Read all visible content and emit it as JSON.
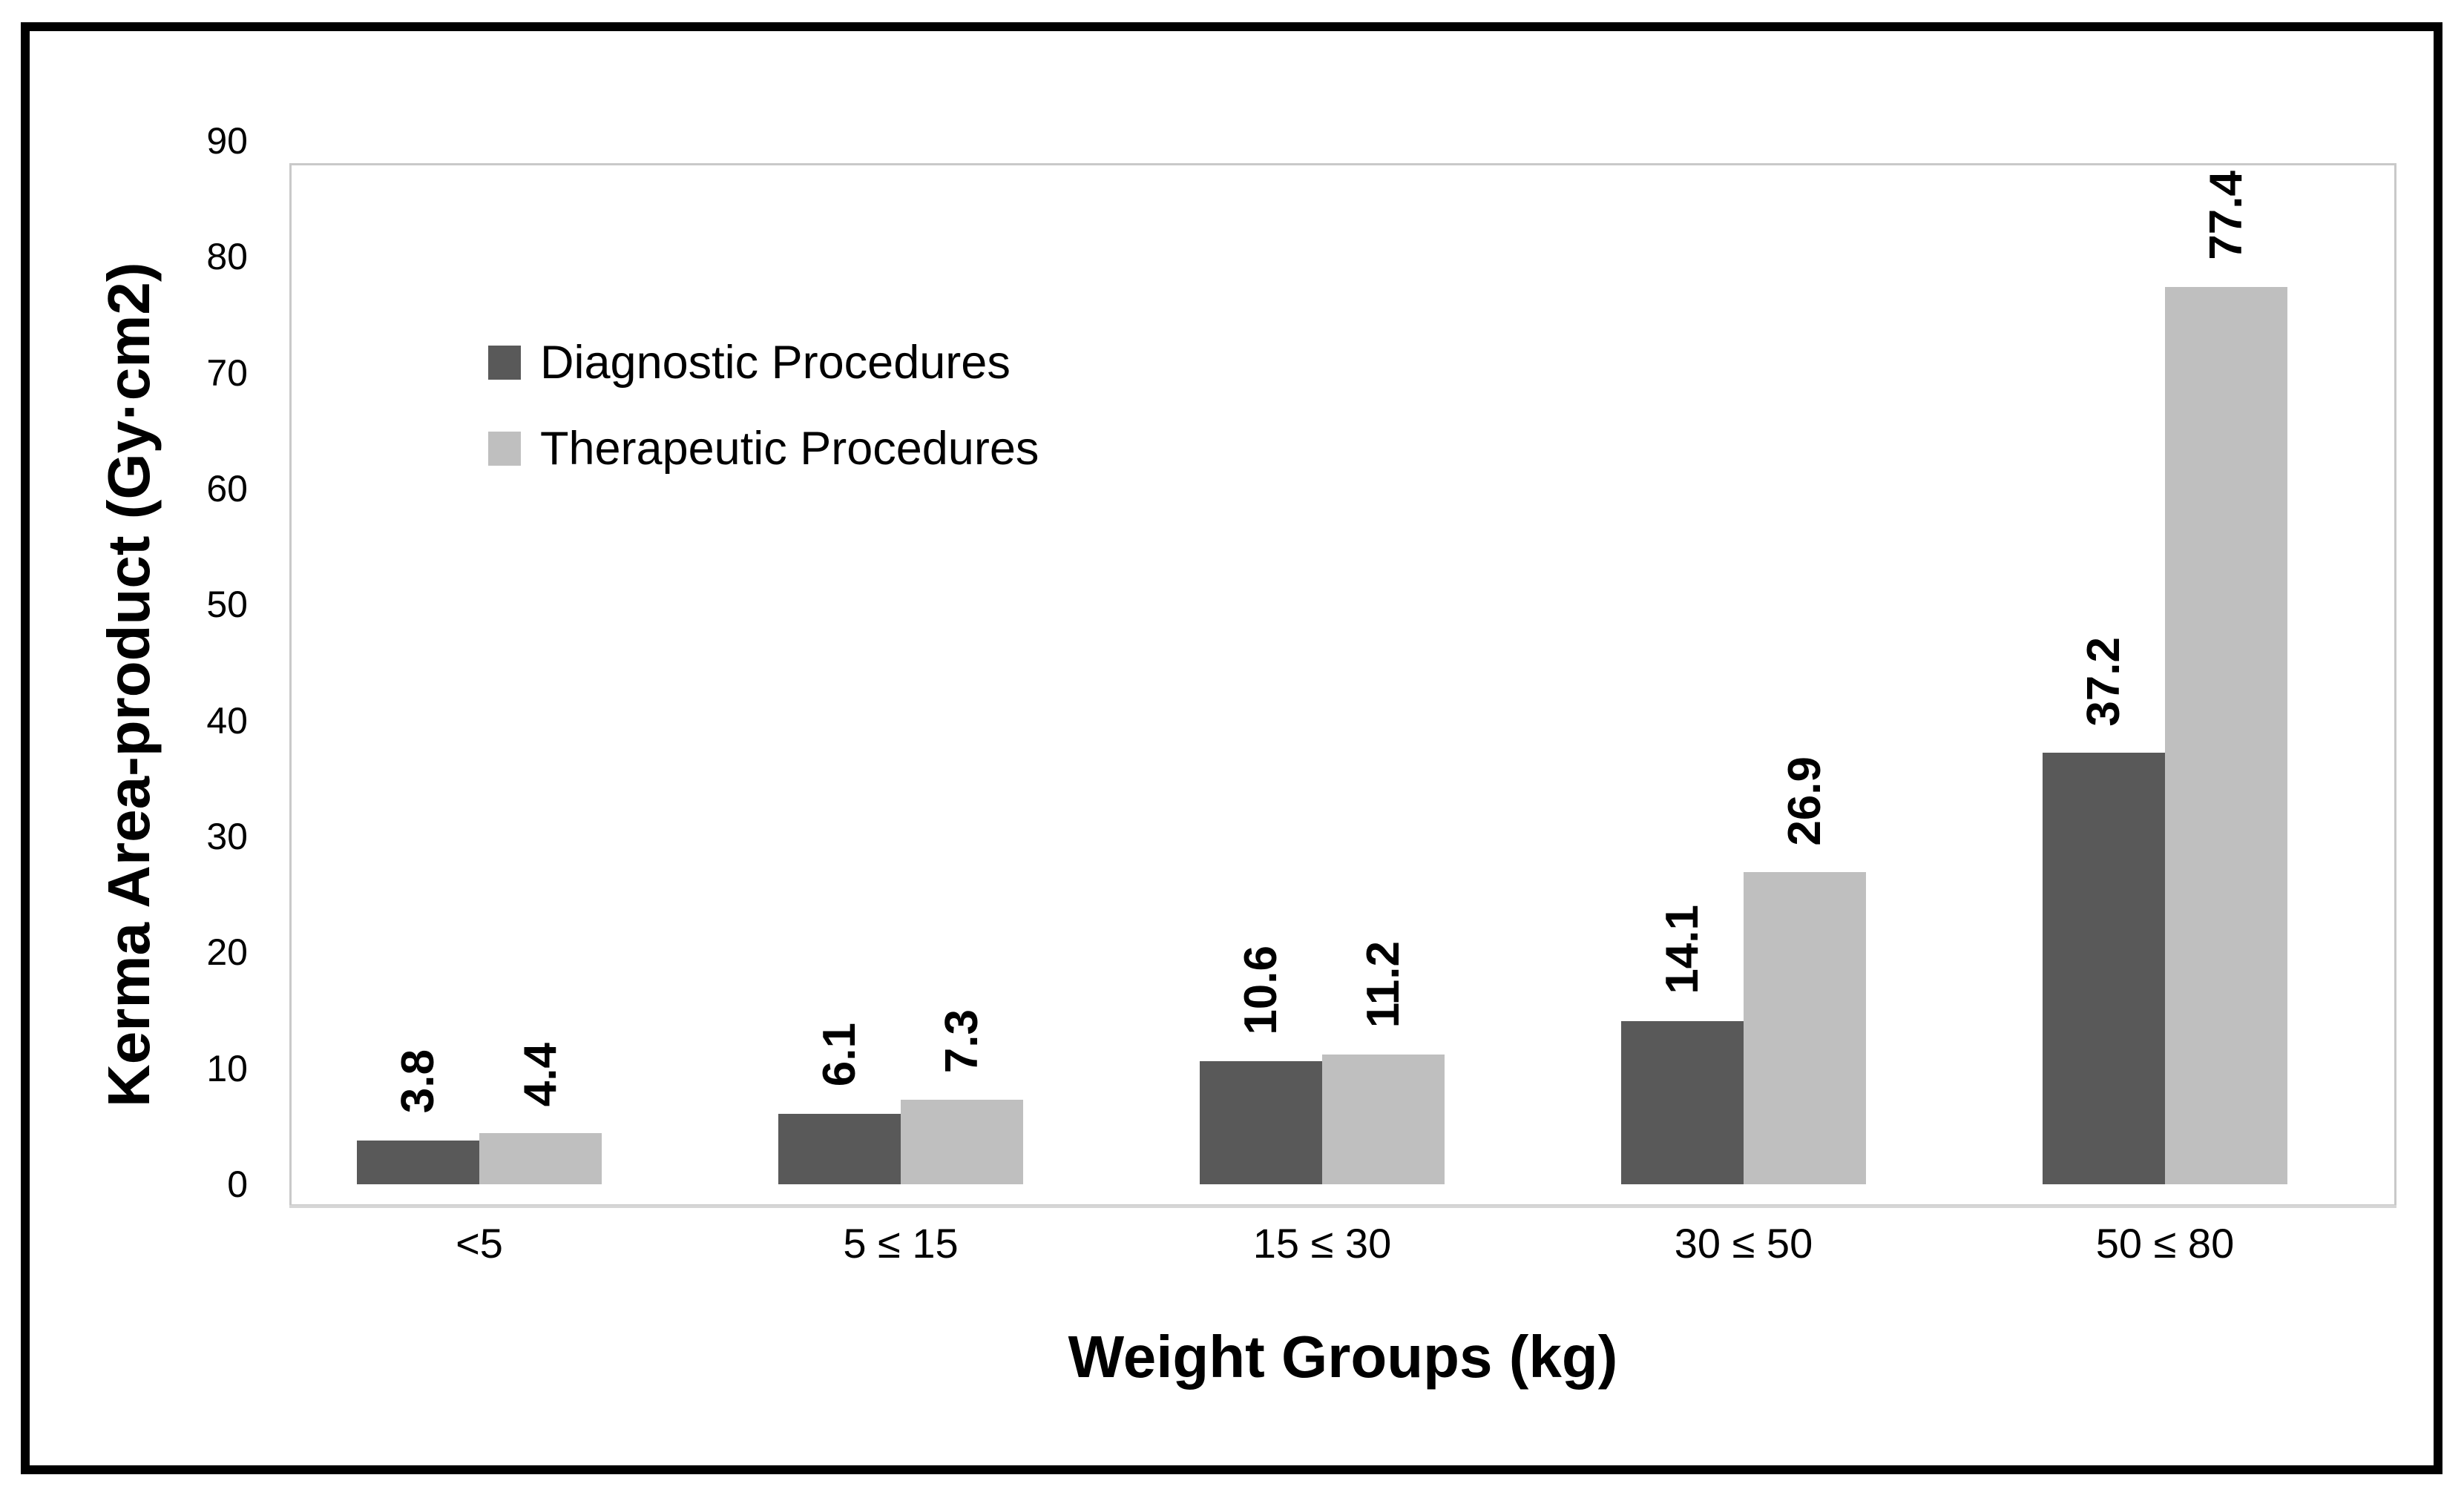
{
  "chart_data": {
    "type": "bar",
    "title": "",
    "xlabel": "Weight Groups (kg)",
    "ylabel": "Kerma Area-product (Gy·cm2)",
    "categories": [
      "<5",
      "5 ≤ 15",
      "15 ≤ 30",
      "30 ≤ 50",
      "50 ≤ 80"
    ],
    "series": [
      {
        "name": "Diagnostic Procedures",
        "color": "#595959",
        "values": [
          3.8,
          6.1,
          10.6,
          14.1,
          37.2
        ]
      },
      {
        "name": "Therapeutic Procedures",
        "color": "#bfbfbf",
        "values": [
          4.4,
          7.3,
          11.2,
          26.9,
          77.4
        ]
      }
    ],
    "data_labels": {
      "Diagnostic Procedures": [
        "3.8",
        "6.1",
        "10.6",
        "14.1",
        "37.2"
      ],
      "Therapeutic Procedures": [
        "4.4",
        "7.3",
        "11.2",
        "26.9",
        "77.4"
      ]
    },
    "ylim": [
      0,
      90
    ],
    "ytick_step": 10,
    "ytick_labels": [
      "0",
      "10",
      "20",
      "30",
      "40",
      "50",
      "60",
      "70",
      "80",
      "90"
    ],
    "grid": false,
    "legend_position": "upper-left-inside",
    "data_label_orientation": "rotated-90",
    "bar_colors": {
      "diagnostic": "#595959",
      "therapeutic": "#bfbfbf"
    },
    "frame_color": "#000000",
    "plot_border_color": "#c9c9c9"
  }
}
